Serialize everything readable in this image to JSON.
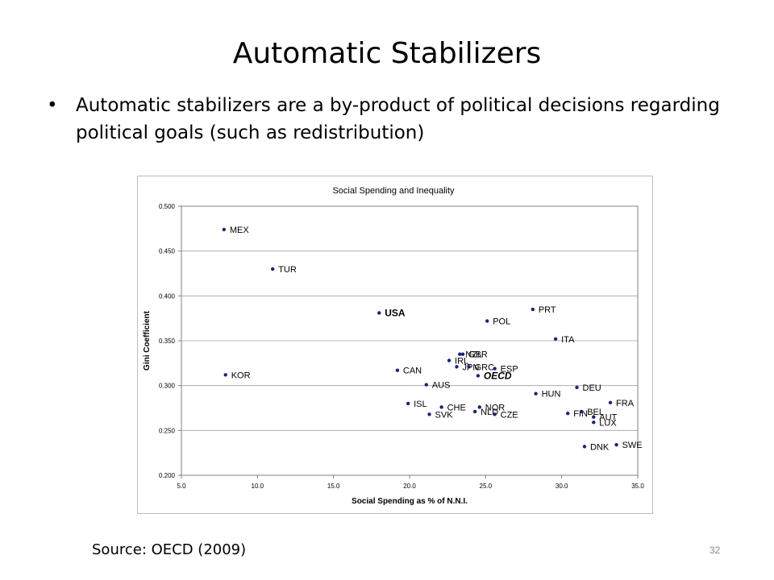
{
  "slide": {
    "title": "Automatic Stabilizers",
    "bullet": "Automatic stabilizers are a by-product of political decisions regarding political goals (such as redistribution)",
    "bullet_marker": "•",
    "source": "Source: OECD (2009)",
    "page_number": "32"
  },
  "chart_data": {
    "type": "scatter",
    "title": "Social Spending and Inequality",
    "xlabel": "Social Spending as % of N.N.I.",
    "ylabel": "Gini Coefficient",
    "xlim": [
      5.0,
      35.0
    ],
    "ylim": [
      0.2,
      0.5
    ],
    "xticks": [
      "5.0",
      "10.0",
      "15.0",
      "20.0",
      "25.0",
      "30.0",
      "35.0"
    ],
    "yticks": [
      "0.200",
      "0.250",
      "0.300",
      "0.350",
      "0.400",
      "0.450",
      "0.500"
    ],
    "grid": "horizontal",
    "point_color": "#1a237e",
    "points": [
      {
        "label": "MEX",
        "x": 7.8,
        "y": 0.474
      },
      {
        "label": "TUR",
        "x": 11.0,
        "y": 0.43
      },
      {
        "label": "USA",
        "x": 18.0,
        "y": 0.381,
        "bold": true
      },
      {
        "label": "KOR",
        "x": 7.9,
        "y": 0.312
      },
      {
        "label": "PRT",
        "x": 28.1,
        "y": 0.385
      },
      {
        "label": "POL",
        "x": 25.1,
        "y": 0.372
      },
      {
        "label": "ITA",
        "x": 29.6,
        "y": 0.352
      },
      {
        "label": "GBR",
        "x": 23.5,
        "y": 0.335
      },
      {
        "label": "NZL",
        "x": 23.3,
        "y": 0.335
      },
      {
        "label": "IRL",
        "x": 22.6,
        "y": 0.328
      },
      {
        "label": "JPN",
        "x": 23.1,
        "y": 0.321
      },
      {
        "label": "GRC",
        "x": 23.9,
        "y": 0.321
      },
      {
        "label": "ESP",
        "x": 25.6,
        "y": 0.319
      },
      {
        "label": "OECD",
        "x": 24.5,
        "y": 0.311,
        "bold": true,
        "italic": true
      },
      {
        "label": "CAN",
        "x": 19.2,
        "y": 0.317
      },
      {
        "label": "AUS",
        "x": 21.1,
        "y": 0.301
      },
      {
        "label": "DEU",
        "x": 31.0,
        "y": 0.298
      },
      {
        "label": "HUN",
        "x": 28.3,
        "y": 0.291
      },
      {
        "label": "FRA",
        "x": 33.2,
        "y": 0.281
      },
      {
        "label": "ISL",
        "x": 19.9,
        "y": 0.28
      },
      {
        "label": "CHE",
        "x": 22.1,
        "y": 0.276
      },
      {
        "label": "NOR",
        "x": 24.6,
        "y": 0.276
      },
      {
        "label": "NLD",
        "x": 24.3,
        "y": 0.271
      },
      {
        "label": "CZE",
        "x": 25.6,
        "y": 0.268
      },
      {
        "label": "SVK",
        "x": 21.3,
        "y": 0.268
      },
      {
        "label": "FIN",
        "x": 30.4,
        "y": 0.269
      },
      {
        "label": "BEL",
        "x": 31.3,
        "y": 0.271
      },
      {
        "label": "AUT",
        "x": 32.1,
        "y": 0.265
      },
      {
        "label": "LUX",
        "x": 32.1,
        "y": 0.259
      },
      {
        "label": "DNK",
        "x": 31.5,
        "y": 0.232
      },
      {
        "label": "SWE",
        "x": 33.6,
        "y": 0.234
      }
    ]
  }
}
